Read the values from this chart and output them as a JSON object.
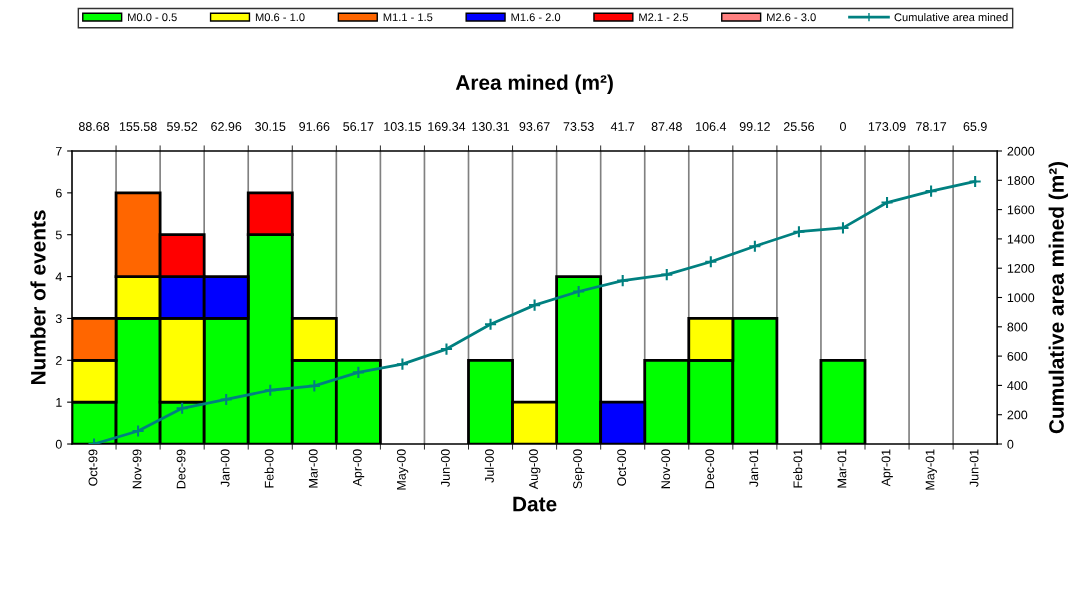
{
  "chart_data": {
    "type": "bar",
    "stacked": true,
    "title": "Area mined (m²)",
    "xlabel": "Date",
    "ylabel": "Number of events",
    "y2label": "Cumulative area mined (m²)",
    "categories": [
      "Oct-99",
      "Nov-99",
      "Dec-99",
      "Jan-00",
      "Feb-00",
      "Mar-00",
      "Apr-00",
      "May-00",
      "Jun-00",
      "Jul-00",
      "Aug-00",
      "Sep-00",
      "Oct-00",
      "Nov-00",
      "Dec-00",
      "Jan-01",
      "Feb-01",
      "Mar-01",
      "Apr-01",
      "May-01",
      "Jun-01"
    ],
    "series": [
      {
        "name": "M0.0 - 0.5",
        "color": "#00ff00",
        "values": [
          1,
          3,
          1,
          3,
          5,
          2,
          2,
          0,
          0,
          2,
          0,
          4,
          0,
          2,
          2,
          3,
          0,
          2,
          0,
          0,
          0
        ]
      },
      {
        "name": "M0.6 - 1.0",
        "color": "#ffff00",
        "values": [
          1,
          1,
          2,
          0,
          0,
          1,
          0,
          0,
          0,
          0,
          1,
          0,
          0,
          0,
          1,
          0,
          0,
          0,
          0,
          0,
          0
        ]
      },
      {
        "name": "M1.1 - 1.5",
        "color": "#ff6600",
        "values": [
          1,
          2,
          0,
          0,
          0,
          0,
          0,
          0,
          0,
          0,
          0,
          0,
          0,
          0,
          0,
          0,
          0,
          0,
          0,
          0,
          0
        ]
      },
      {
        "name": "M1.6 - 2.0",
        "color": "#0000ff",
        "values": [
          0,
          0,
          1,
          1,
          0,
          0,
          0,
          0,
          0,
          0,
          0,
          0,
          1,
          0,
          0,
          0,
          0,
          0,
          0,
          0,
          0
        ]
      },
      {
        "name": "M2.1 - 2.5",
        "color": "#ff0000",
        "values": [
          0,
          0,
          1,
          0,
          1,
          0,
          0,
          0,
          0,
          0,
          0,
          0,
          0,
          0,
          0,
          0,
          0,
          0,
          0,
          0,
          0
        ]
      },
      {
        "name": "M2.6 - 3.0",
        "color": "#ff8080",
        "values": [
          0,
          0,
          0,
          0,
          0,
          0,
          0,
          0,
          0,
          0,
          0,
          0,
          0,
          0,
          0,
          0,
          0,
          0,
          0,
          0,
          0
        ]
      },
      {
        "name": "Cumulative area mined",
        "type": "line",
        "axis": "y2",
        "color": "#008080",
        "marker": "cross",
        "values": [
          0,
          89,
          244,
          304,
          367,
          397,
          489,
          545,
          648,
          817,
          948,
          1041,
          1115,
          1156,
          1244,
          1350,
          1449,
          1475,
          1648,
          1726,
          1792
        ]
      }
    ],
    "ylim": [
      0,
      7
    ],
    "yticks": [
      0,
      1,
      2,
      3,
      4,
      5,
      6,
      7
    ],
    "y2lim": [
      0,
      2000
    ],
    "y2ticks": [
      0,
      200,
      400,
      600,
      800,
      1000,
      1200,
      1400,
      1600,
      1800,
      2000
    ],
    "grid": "x",
    "legend": "top",
    "annotations": [
      "88.68",
      "155.58",
      "59.52",
      "62.96",
      "30.15",
      "91.66",
      "56.17",
      "103.15",
      "169.34",
      "130.31",
      "93.67",
      "73.53",
      "41.7",
      "87.48",
      "106.4",
      "99.12",
      "25.56",
      "0",
      "173.09",
      "78.17",
      "65.9"
    ]
  }
}
